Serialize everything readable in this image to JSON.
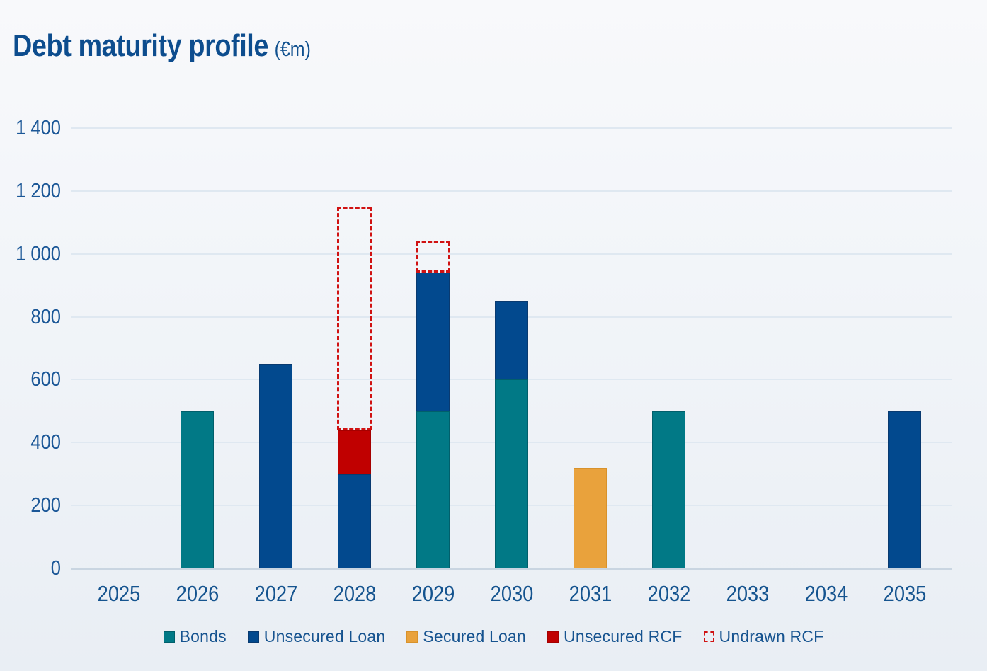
{
  "title": {
    "main": "Debt maturity profile",
    "unit": "(€m)"
  },
  "colors": {
    "background_top": "#f8f9fb",
    "background_bottom": "#e9eef4",
    "title_text": "#0d4d8e",
    "axis_text": "#1b5797",
    "legend_text": "#16538f",
    "gridline": "#dfe8f1",
    "axis_line": "#c9d5e1"
  },
  "chart_data": {
    "type": "bar",
    "stacked": true,
    "title": "Debt maturity profile (€m)",
    "xlabel": "",
    "ylabel": "",
    "grid": true,
    "legend_position": "bottom",
    "ylim": [
      0,
      1400
    ],
    "ytick_step": 200,
    "ytick_labels": [
      "0",
      "200",
      "400",
      "600",
      "800",
      "1 000",
      "1 200",
      "1 400"
    ],
    "categories": [
      "2025",
      "2026",
      "2027",
      "2028",
      "2029",
      "2030",
      "2031",
      "2032",
      "2033",
      "2034",
      "2035"
    ],
    "series": [
      {
        "name": "Bonds",
        "color": "#017986",
        "border": "#015f6b",
        "style": "solid",
        "values": [
          0,
          500,
          0,
          0,
          500,
          600,
          0,
          500,
          0,
          0,
          0
        ]
      },
      {
        "name": "Unsecured Loan",
        "color": "#02498e",
        "border": "#093a70",
        "style": "solid",
        "values": [
          0,
          0,
          650,
          300,
          440,
          250,
          0,
          0,
          0,
          0,
          500
        ]
      },
      {
        "name": "Secured Loan",
        "color": "#e9a23c",
        "border": "#d8922b",
        "style": "solid",
        "values": [
          0,
          0,
          0,
          0,
          0,
          0,
          320,
          0,
          0,
          0,
          0
        ]
      },
      {
        "name": "Unsecured RCF",
        "color": "#c00000",
        "border": "#a50000",
        "style": "solid",
        "values": [
          0,
          0,
          0,
          140,
          0,
          0,
          0,
          0,
          0,
          0,
          0
        ]
      },
      {
        "name": "Undrawn RCF",
        "color": "#d01212",
        "border": "#d01212",
        "style": "dashed-outline",
        "values": [
          0,
          0,
          0,
          710,
          100,
          0,
          0,
          0,
          0,
          0,
          0
        ]
      }
    ]
  }
}
